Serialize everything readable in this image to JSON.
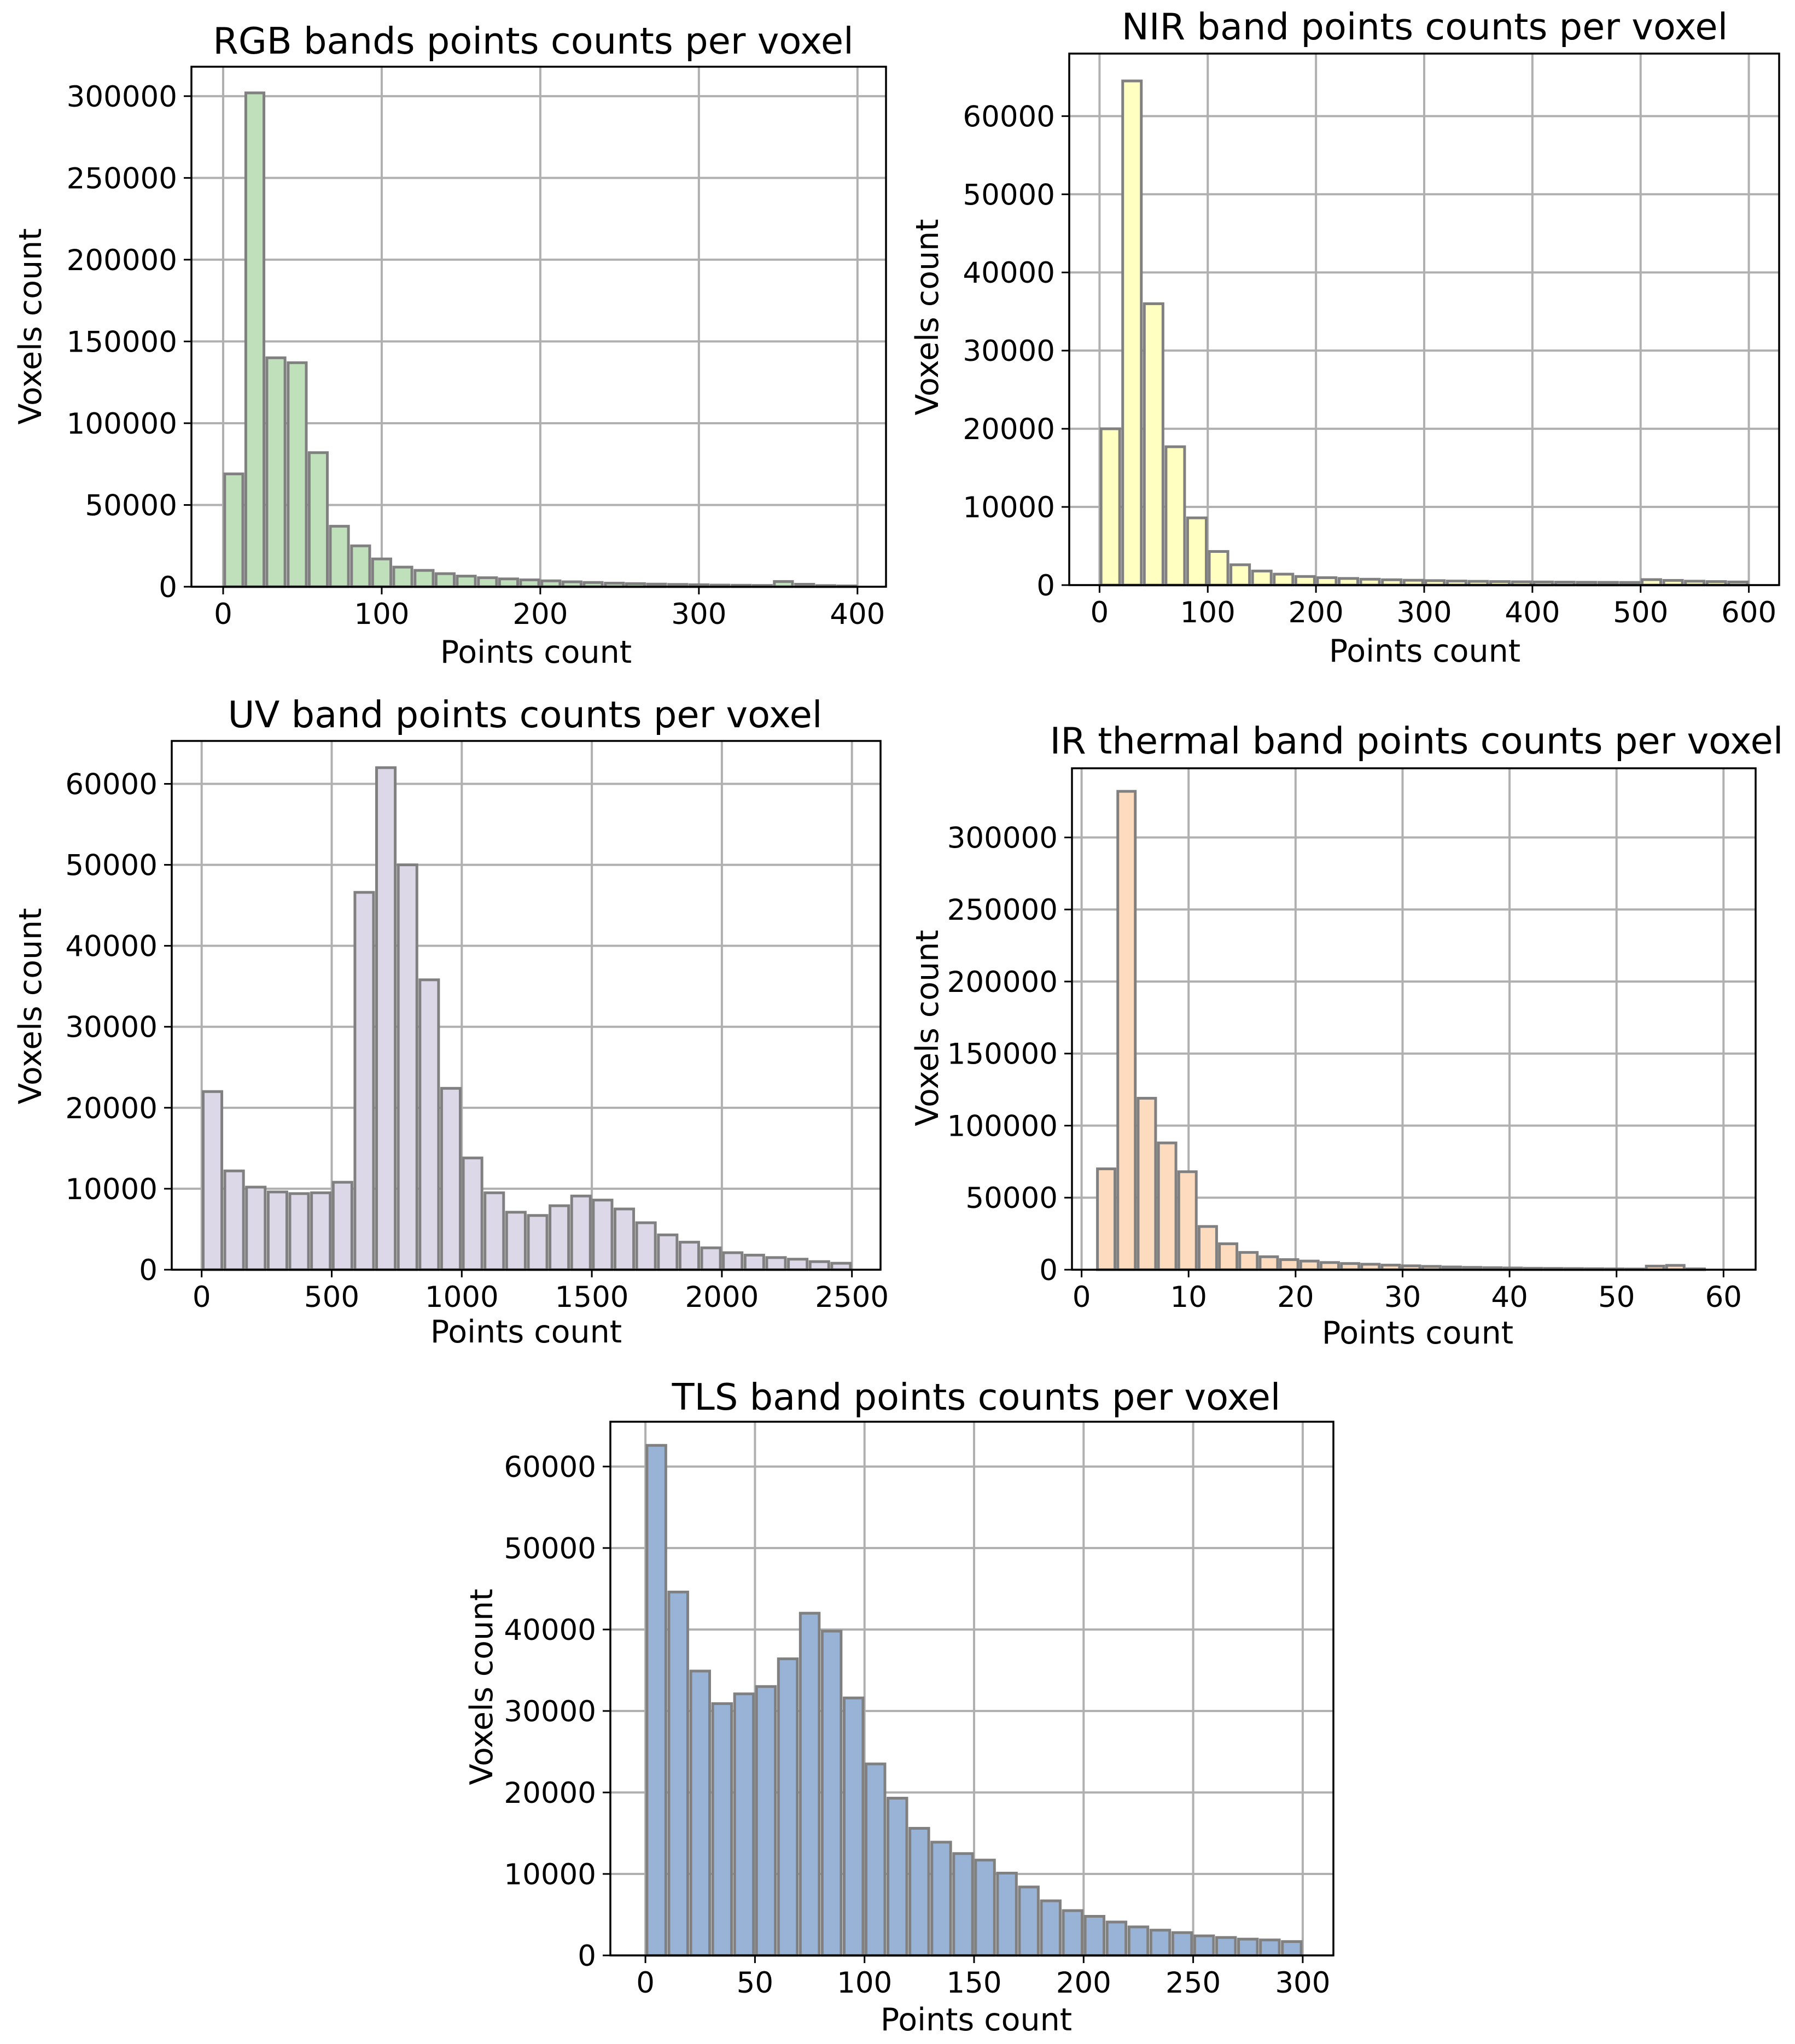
{
  "chart_data": [
    {
      "type": "bar",
      "id": "rgb",
      "title": "RGB bands points counts per voxel",
      "xlabel": "Points count",
      "ylabel": "Voxels count",
      "bar_color": "#bfe0bb",
      "edge_color": "#808080",
      "bin_width": 13.3,
      "xlim": [
        -20,
        418
      ],
      "ylim": [
        0,
        318000
      ],
      "xticks": [
        0,
        100,
        200,
        300,
        400
      ],
      "xtick_labels": [
        "0",
        "100",
        "200",
        "300",
        "400"
      ],
      "yticks": [
        0,
        50000,
        100000,
        150000,
        200000,
        250000,
        300000
      ],
      "ytick_labels": [
        "0",
        "50000",
        "100000",
        "150000",
        "200000",
        "250000",
        "300000"
      ],
      "x": [
        6.7,
        20,
        33.3,
        46.7,
        60,
        73.3,
        86.7,
        100,
        113.3,
        126.7,
        140,
        153.3,
        166.7,
        180,
        193.3,
        206.7,
        220,
        233.3,
        246.7,
        260,
        273.3,
        286.7,
        300,
        313.3,
        326.7,
        340,
        353.3,
        366.7,
        380,
        393.3
      ],
      "values": [
        69000,
        302000,
        140000,
        137000,
        82000,
        37000,
        25000,
        17000,
        12000,
        10000,
        8000,
        6500,
        5500,
        4800,
        4200,
        3600,
        3000,
        2600,
        2200,
        1900,
        1600,
        1400,
        1200,
        1000,
        900,
        800,
        3200,
        1500,
        700,
        500
      ]
    },
    {
      "type": "bar",
      "id": "nir",
      "title": "NIR band points counts per voxel",
      "xlabel": "Points count",
      "ylabel": "Voxels count",
      "bar_color": "#ffffc2",
      "edge_color": "#808080",
      "bin_width": 20,
      "xlim": [
        -28,
        628
      ],
      "ylim": [
        0,
        68000
      ],
      "xticks": [
        0,
        100,
        200,
        300,
        400,
        500,
        600
      ],
      "xtick_labels": [
        "0",
        "100",
        "200",
        "300",
        "400",
        "500",
        "600"
      ],
      "yticks": [
        0,
        10000,
        20000,
        30000,
        40000,
        50000,
        60000
      ],
      "ytick_labels": [
        "0",
        "10000",
        "20000",
        "30000",
        "40000",
        "50000",
        "60000"
      ],
      "x": [
        10,
        30,
        50,
        70,
        90,
        110,
        130,
        150,
        170,
        190,
        210,
        230,
        250,
        270,
        290,
        310,
        330,
        350,
        370,
        390,
        410,
        430,
        450,
        470,
        490,
        510,
        530,
        550,
        570,
        590
      ],
      "values": [
        20000,
        64500,
        36000,
        17700,
        8600,
        4300,
        2600,
        1800,
        1400,
        1100,
        950,
        850,
        750,
        680,
        620,
        570,
        520,
        480,
        450,
        420,
        400,
        380,
        360,
        350,
        340,
        700,
        600,
        500,
        450,
        400
      ]
    },
    {
      "type": "bar",
      "id": "uv",
      "title": "UV band points counts per voxel",
      "xlabel": "Points count",
      "ylabel": "Voxels count",
      "bar_color": "#dcd8e8",
      "edge_color": "#808080",
      "bin_width": 83.3,
      "xlim": [
        -115,
        2610
      ],
      "ylim": [
        0,
        65300
      ],
      "xticks": [
        0,
        500,
        1000,
        1500,
        2000,
        2500
      ],
      "xtick_labels": [
        "0",
        "500",
        "1000",
        "1500",
        "2000",
        "2500"
      ],
      "yticks": [
        0,
        10000,
        20000,
        30000,
        40000,
        50000,
        60000
      ],
      "ytick_labels": [
        "0",
        "10000",
        "20000",
        "30000",
        "40000",
        "50000",
        "60000"
      ],
      "x": [
        41.7,
        125,
        208.3,
        291.7,
        375,
        458.3,
        541.7,
        625,
        708.3,
        791.7,
        875,
        958.3,
        1041.7,
        1125,
        1208.3,
        1291.7,
        1375,
        1458.3,
        1541.7,
        1625,
        1708.3,
        1791.7,
        1875,
        1958.3,
        2041.7,
        2125,
        2208.3,
        2291.7,
        2375,
        2458.3
      ],
      "values": [
        22000,
        12200,
        10200,
        9600,
        9400,
        9500,
        10800,
        46600,
        62000,
        50000,
        35800,
        22400,
        13800,
        9500,
        7100,
        6700,
        7900,
        9100,
        8600,
        7500,
        5800,
        4300,
        3400,
        2700,
        2100,
        1800,
        1500,
        1300,
        1000,
        800
      ]
    },
    {
      "type": "bar",
      "id": "ir",
      "title": "IR thermal band points counts per voxel",
      "xlabel": "Points count",
      "ylabel": "Voxels count",
      "bar_color": "#fddbbe",
      "edge_color": "#808080",
      "bin_width": 1.9,
      "xlim": [
        -0.9,
        63
      ],
      "ylim": [
        0,
        348000
      ],
      "xticks": [
        0,
        10,
        20,
        30,
        40,
        50,
        60
      ],
      "xtick_labels": [
        "0",
        "10",
        "20",
        "30",
        "40",
        "50",
        "60"
      ],
      "yticks": [
        0,
        50000,
        100000,
        150000,
        200000,
        250000,
        300000
      ],
      "ytick_labels": [
        "0",
        "50000",
        "100000",
        "150000",
        "200000",
        "250000",
        "300000"
      ],
      "x": [
        2.3,
        4.2,
        6.1,
        8.0,
        9.9,
        11.8,
        13.7,
        15.6,
        17.5,
        19.4,
        21.3,
        23.2,
        25.1,
        27.0,
        28.9,
        30.8,
        32.7,
        34.6,
        36.5,
        38.4,
        40.3,
        42.2,
        44.1,
        46.0,
        47.9,
        49.8,
        51.7,
        53.6,
        55.5,
        57.4
      ],
      "values": [
        70000,
        332000,
        119000,
        88000,
        68000,
        30000,
        18000,
        12000,
        9000,
        7000,
        6000,
        5000,
        4300,
        3800,
        3200,
        2700,
        2300,
        1900,
        1600,
        1400,
        1200,
        1000,
        900,
        800,
        700,
        600,
        500,
        2500,
        3000,
        600
      ]
    },
    {
      "type": "bar",
      "id": "tls",
      "title": "TLS band points counts per voxel",
      "xlabel": "Points count",
      "ylabel": "Voxels count",
      "bar_color": "#98b3d5",
      "edge_color": "#808080",
      "bin_width": 10,
      "xlim": [
        -16,
        314
      ],
      "ylim": [
        0,
        65500
      ],
      "xticks": [
        0,
        50,
        100,
        150,
        200,
        250,
        300
      ],
      "xtick_labels": [
        "0",
        "50",
        "100",
        "150",
        "200",
        "250",
        "300"
      ],
      "yticks": [
        0,
        10000,
        20000,
        30000,
        40000,
        50000,
        60000
      ],
      "ytick_labels": [
        "0",
        "10000",
        "20000",
        "30000",
        "40000",
        "50000",
        "60000"
      ],
      "x": [
        5,
        15,
        25,
        35,
        45,
        55,
        65,
        75,
        85,
        95,
        105,
        115,
        125,
        135,
        145,
        155,
        165,
        175,
        185,
        195,
        205,
        215,
        225,
        235,
        245,
        255,
        265,
        275,
        285,
        295
      ],
      "values": [
        62600,
        44600,
        34900,
        30900,
        32100,
        33000,
        36400,
        42000,
        39800,
        31600,
        23500,
        19300,
        15600,
        13900,
        12500,
        11700,
        10100,
        8400,
        6700,
        5500,
        4800,
        4100,
        3500,
        3100,
        2800,
        2400,
        2200,
        2000,
        1900,
        1700
      ]
    }
  ]
}
